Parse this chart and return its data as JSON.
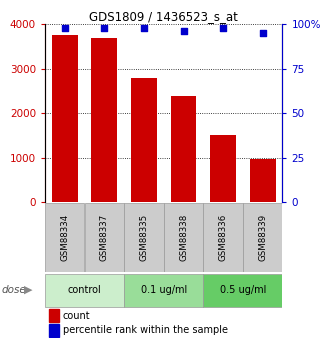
{
  "title": "GDS1809 / 1436523_s_at",
  "samples": [
    "GSM88334",
    "GSM88337",
    "GSM88335",
    "GSM88338",
    "GSM88336",
    "GSM88339"
  ],
  "counts": [
    3750,
    3700,
    2800,
    2380,
    1520,
    980
  ],
  "percentiles": [
    98,
    98,
    98,
    96,
    98,
    95
  ],
  "count_max": 4000,
  "count_ticks": [
    0,
    1000,
    2000,
    3000,
    4000
  ],
  "pct_ticks": [
    0,
    25,
    50,
    75,
    100
  ],
  "bar_color": "#cc0000",
  "dot_color": "#0000cc",
  "groups": [
    {
      "label": "control",
      "start": 0,
      "end": 2,
      "color": "#cceecc"
    },
    {
      "label": "0.1 ug/ml",
      "start": 2,
      "end": 4,
      "color": "#99dd99"
    },
    {
      "label": "0.5 ug/ml",
      "start": 4,
      "end": 6,
      "color": "#66cc66"
    }
  ],
  "dose_label": "dose",
  "tick_bg_color": "#cccccc",
  "legend_count_color": "#cc0000",
  "legend_pct_color": "#0000cc",
  "fig_width": 3.21,
  "fig_height": 3.45,
  "dpi": 100
}
